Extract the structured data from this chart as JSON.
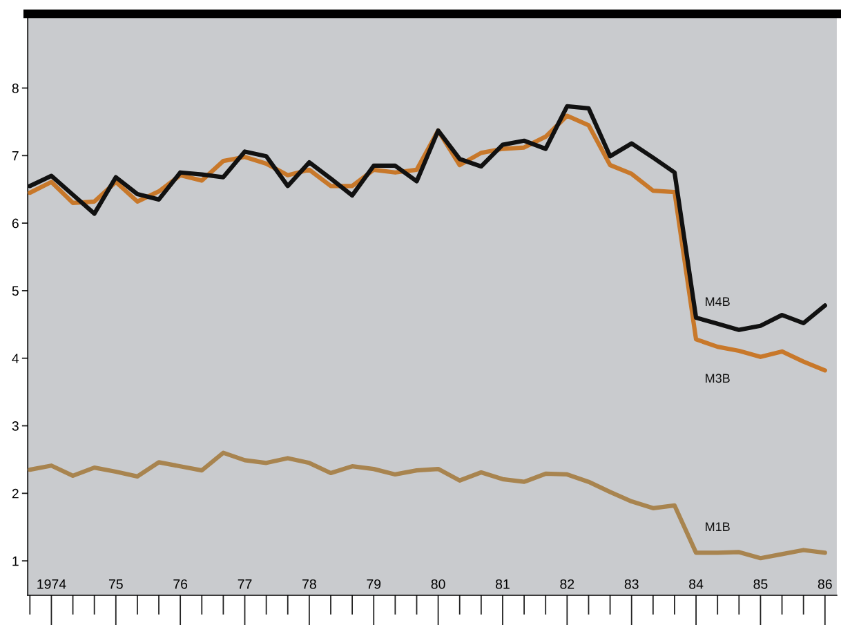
{
  "chart_data": {
    "type": "line",
    "categories": [
      null,
      "1974",
      null,
      null,
      "75",
      null,
      null,
      "76",
      null,
      null,
      "77",
      null,
      null,
      "78",
      null,
      null,
      "79",
      null,
      null,
      "80",
      null,
      null,
      "81",
      null,
      null,
      "82",
      null,
      null,
      "83",
      null,
      null,
      "84",
      null,
      null,
      "85",
      null,
      null,
      "86"
    ],
    "series": [
      {
        "name": "M4B",
        "color": "#111111",
        "values": [
          6.55,
          6.7,
          6.42,
          6.14,
          6.68,
          6.43,
          6.35,
          6.75,
          6.72,
          6.68,
          7.06,
          6.99,
          6.55,
          6.9,
          6.66,
          6.41,
          6.85,
          6.85,
          6.62,
          7.37,
          6.95,
          6.84,
          7.16,
          7.22,
          7.1,
          7.73,
          7.7,
          6.99,
          7.18,
          6.97,
          6.75,
          4.6,
          4.51,
          4.42,
          4.48,
          4.64,
          4.52,
          4.78
        ]
      },
      {
        "name": "M3B",
        "color": "#c8782a",
        "values": [
          6.45,
          6.61,
          6.3,
          6.32,
          6.61,
          6.32,
          6.47,
          6.71,
          6.63,
          6.92,
          6.98,
          6.88,
          6.71,
          6.79,
          6.55,
          6.55,
          6.79,
          6.75,
          6.79,
          7.37,
          6.86,
          7.04,
          7.1,
          7.12,
          7.28,
          7.59,
          7.45,
          6.86,
          6.73,
          6.48,
          6.46,
          4.28,
          4.17,
          4.11,
          4.02,
          4.1,
          3.95,
          3.82
        ]
      },
      {
        "name": "M1B",
        "color": "#a8844f",
        "values": [
          2.35,
          2.41,
          2.26,
          2.38,
          2.32,
          2.25,
          2.46,
          2.4,
          2.34,
          2.6,
          2.49,
          2.45,
          2.52,
          2.45,
          2.3,
          2.4,
          2.36,
          2.28,
          2.34,
          2.36,
          2.19,
          2.31,
          2.21,
          2.17,
          2.29,
          2.28,
          2.17,
          2.02,
          1.88,
          1.78,
          1.82,
          1.12,
          1.12,
          1.13,
          1.04,
          1.1,
          1.16,
          1.12
        ]
      }
    ],
    "ylim": [
      0.49,
      9.1
    ],
    "yticks": [
      1,
      2,
      3,
      4,
      5,
      6,
      7,
      8
    ],
    "grid": false,
    "legend": false,
    "marker": "none",
    "line_style": "solid"
  }
}
